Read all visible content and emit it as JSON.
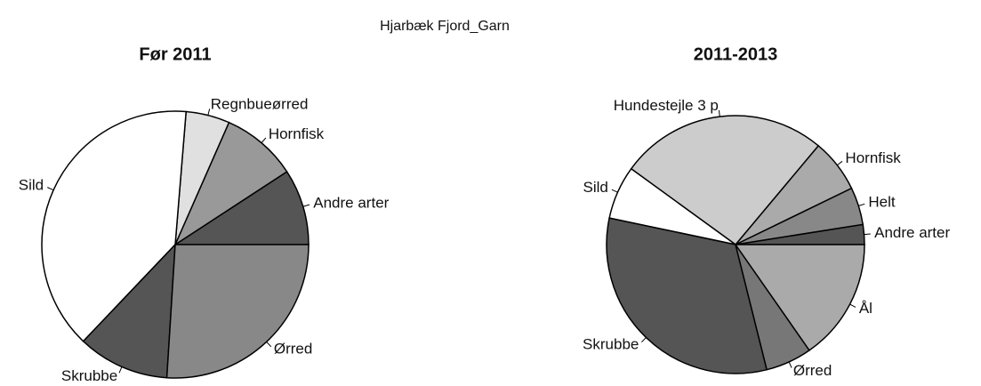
{
  "title": "Hjarbæk Fjord_Garn",
  "chart_data": [
    {
      "type": "pie",
      "title": "Før 2011",
      "categories": [
        "Andre arter",
        "Hornfisk",
        "Regnbueørred",
        "Sild",
        "Skrubbe",
        "Ørred"
      ],
      "values": [
        9.2,
        9.2,
        5.3,
        39.2,
        11.1,
        26.0
      ],
      "colors": [
        "#555555",
        "#999999",
        "#e0e0e0",
        "#ffffff",
        "#555555",
        "#888888"
      ]
    },
    {
      "type": "pie",
      "title": "2011-2013",
      "categories": [
        "Andre arter",
        "Helt",
        "Hornfisk",
        "Hundestejle 3 p",
        "Sild",
        "Skrubbe",
        "Ørred",
        "Ål"
      ],
      "values": [
        2.5,
        4.7,
        6.7,
        26.1,
        6.7,
        32.2,
        5.8,
        15.3
      ],
      "colors": [
        "#555555",
        "#888888",
        "#aaaaaa",
        "#cccccc",
        "#ffffff",
        "#555555",
        "#777777",
        "#aaaaaa"
      ]
    }
  ]
}
